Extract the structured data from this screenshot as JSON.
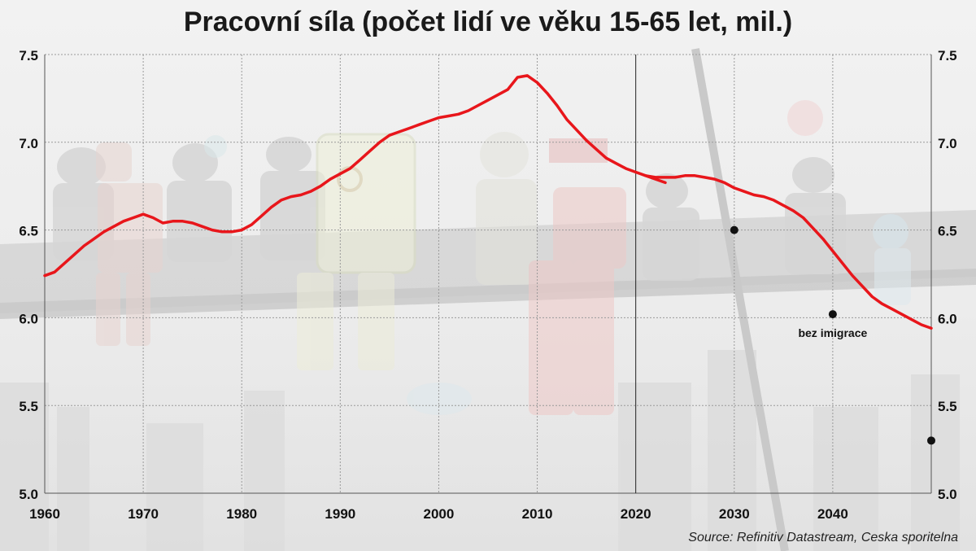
{
  "title": "Pracovní síla (počet lidí ve věku 15-65 let, mil.)",
  "source": "Source: Refinitiv Datastream, Ceska sporitelna",
  "colors": {
    "line": "#e8161b",
    "marker": "#111111",
    "grid": "#9a9a9a",
    "divider": "#222222"
  },
  "chart_data": {
    "type": "line",
    "title": "Pracovní síla (počet lidí ve věku 15-65 let, mil.)",
    "xlabel": "",
    "ylabel": "",
    "xlim": [
      1960,
      2050
    ],
    "ylim": [
      5.0,
      7.5
    ],
    "x_ticks": [
      "1960",
      "1970",
      "1980",
      "1990",
      "2000",
      "2010",
      "2020",
      "2030",
      "2040"
    ],
    "y_ticks_left": [
      "5.0",
      "5.5",
      "6.0",
      "6.5",
      "7.0",
      "7.5"
    ],
    "y_ticks_right": [
      "5.0",
      "5.5",
      "6.0",
      "6.5",
      "7.0",
      "7.5"
    ],
    "grid": true,
    "divider_x": 2020,
    "series": [
      {
        "role": "historical",
        "x": [
          1960,
          1961,
          1962,
          1963,
          1964,
          1965,
          1966,
          1967,
          1968,
          1969,
          1970,
          1971,
          1972,
          1973,
          1974,
          1975,
          1976,
          1977,
          1978,
          1979,
          1980,
          1981,
          1982,
          1983,
          1984,
          1985,
          1986,
          1987,
          1988,
          1989,
          1990,
          1991,
          1992,
          1993,
          1994,
          1995,
          1996,
          1997,
          1998,
          1999,
          2000,
          2001,
          2002,
          2003,
          2004,
          2005,
          2006,
          2007,
          2008,
          2009,
          2010,
          2011,
          2012,
          2013,
          2014,
          2015,
          2016,
          2017,
          2018,
          2019,
          2020,
          2021,
          2022,
          2023
        ],
        "values": [
          6.24,
          6.26,
          6.31,
          6.36,
          6.41,
          6.45,
          6.49,
          6.52,
          6.55,
          6.57,
          6.59,
          6.57,
          6.54,
          6.55,
          6.55,
          6.54,
          6.52,
          6.5,
          6.49,
          6.49,
          6.5,
          6.53,
          6.58,
          6.63,
          6.67,
          6.69,
          6.7,
          6.72,
          6.75,
          6.79,
          6.82,
          6.85,
          6.9,
          6.95,
          7.0,
          7.04,
          7.06,
          7.08,
          7.1,
          7.12,
          7.14,
          7.15,
          7.16,
          7.18,
          7.21,
          7.24,
          7.27,
          7.3,
          7.37,
          7.38,
          7.34,
          7.28,
          7.21,
          7.13,
          7.07,
          7.01,
          6.96,
          6.91,
          6.88,
          6.85,
          6.83,
          6.81,
          6.79,
          6.77
        ]
      },
      {
        "role": "projection",
        "x": [
          2021,
          2022,
          2023,
          2024,
          2025,
          2026,
          2027,
          2028,
          2029,
          2030,
          2031,
          2032,
          2033,
          2034,
          2035,
          2036,
          2037,
          2038,
          2039,
          2040,
          2041,
          2042,
          2043,
          2044,
          2045,
          2046,
          2047,
          2048,
          2049,
          2050
        ],
        "values": [
          6.81,
          6.8,
          6.8,
          6.8,
          6.81,
          6.81,
          6.8,
          6.79,
          6.77,
          6.74,
          6.72,
          6.7,
          6.69,
          6.67,
          6.64,
          6.61,
          6.57,
          6.51,
          6.45,
          6.38,
          6.31,
          6.24,
          6.18,
          6.12,
          6.08,
          6.05,
          6.02,
          5.99,
          5.96,
          5.94
        ]
      }
    ],
    "points": [
      {
        "x": 2030,
        "y": 6.5,
        "label": ""
      },
      {
        "x": 2040,
        "y": 6.02,
        "label": "bez imigrace"
      },
      {
        "x": 2050,
        "y": 5.3,
        "label": ""
      }
    ]
  }
}
